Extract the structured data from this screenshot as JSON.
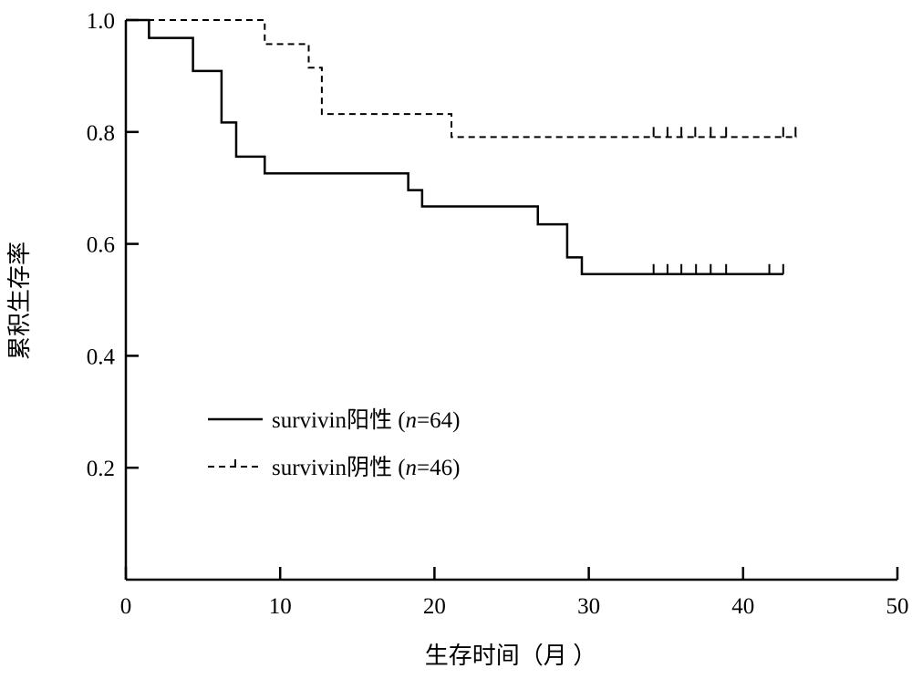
{
  "chart_data": {
    "type": "line",
    "subtype": "kaplan-meier-step",
    "title": "",
    "xlabel": "生存时间（月 ）",
    "ylabel": "累积生存率",
    "xlim": [
      0,
      50
    ],
    "ylim": [
      0,
      1.0
    ],
    "xticks": [
      "0",
      "10",
      "20",
      "30",
      "40",
      "50"
    ],
    "yticks": [
      "0.2",
      "0.4",
      "0.6",
      "0.8",
      "1.0"
    ],
    "xtick_values": [
      0,
      10,
      20,
      30,
      40,
      50
    ],
    "ytick_values": [
      0.2,
      0.4,
      0.6,
      0.8,
      1.0
    ],
    "grid": false,
    "legend_position": "center-left",
    "series": [
      {
        "name": "survivin阳性 (n=64)",
        "legend_prefix": "survivin阳性 (",
        "legend_n": "n",
        "legend_suffix": "=64)",
        "style": "solid",
        "steps": [
          [
            0,
            1.0
          ],
          [
            1.5,
            0.968
          ],
          [
            4.35,
            0.909
          ],
          [
            6.2,
            0.817
          ],
          [
            7.15,
            0.756
          ],
          [
            9.0,
            0.726
          ],
          [
            18.3,
            0.696
          ],
          [
            19.2,
            0.667
          ],
          [
            26.7,
            0.635
          ],
          [
            28.6,
            0.576
          ],
          [
            29.55,
            0.546
          ]
        ],
        "end": 42.6,
        "censored": [
          34.2,
          35.1,
          36.0,
          36.95,
          37.9,
          38.9,
          41.7,
          42.6
        ]
      },
      {
        "name": "survivin阴性 (n=46)",
        "legend_prefix": "survivin阴性 (",
        "legend_n": "n",
        "legend_suffix": "=46)",
        "style": "dashed",
        "steps": [
          [
            0,
            1.0
          ],
          [
            9.0,
            0.957
          ],
          [
            11.85,
            0.915
          ],
          [
            12.7,
            0.832
          ],
          [
            21.1,
            0.791
          ]
        ],
        "end": 43.5,
        "censored": [
          34.2,
          35.1,
          36.0,
          36.9,
          37.9,
          38.9,
          42.6,
          43.4
        ]
      }
    ]
  }
}
